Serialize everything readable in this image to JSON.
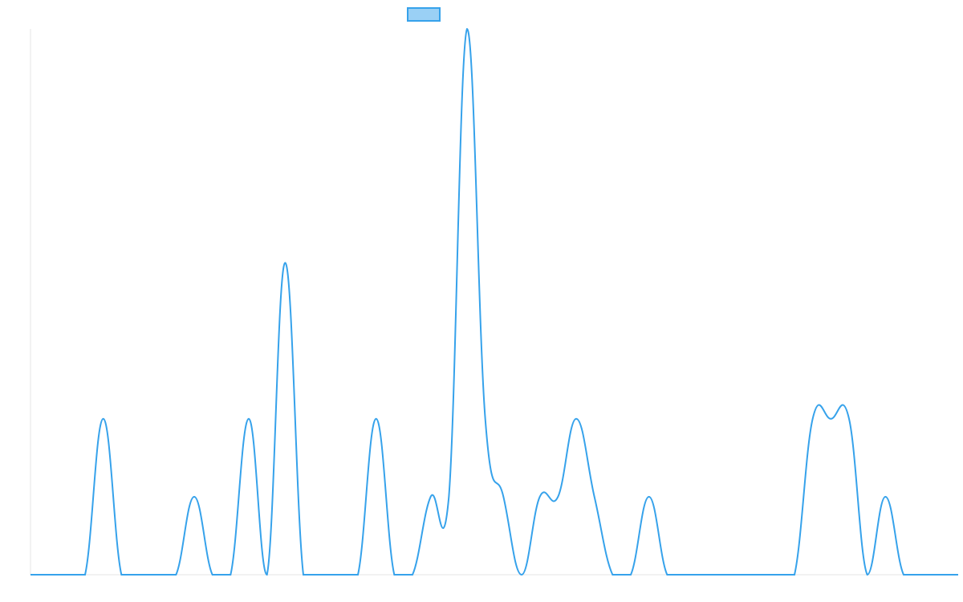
{
  "chart_data": {
    "type": "line",
    "categories": [
      null,
      null,
      null,
      null,
      null,
      null,
      null,
      null,
      null,
      null,
      null,
      null,
      null,
      null,
      null,
      null,
      null,
      null,
      null,
      null,
      null,
      null,
      null,
      null,
      null,
      null,
      null,
      null,
      null,
      null,
      null,
      null,
      null,
      null,
      null,
      null,
      null,
      null,
      null,
      null,
      null,
      null,
      null,
      null,
      null,
      null,
      null,
      null,
      null,
      null,
      null,
      null
    ],
    "series": [
      {
        "color": "#36a2eb",
        "values": [
          0,
          0,
          0,
          0,
          2,
          0,
          0,
          0,
          0,
          1,
          0,
          0,
          2,
          0,
          4,
          0,
          0,
          0,
          0,
          2,
          0,
          0,
          1,
          1,
          7,
          2,
          1,
          0,
          1,
          1,
          2,
          1,
          0,
          0,
          1,
          0,
          0,
          0,
          0,
          0,
          0,
          0,
          0,
          2,
          2,
          2,
          0,
          1,
          0,
          0,
          0,
          0
        ]
      }
    ],
    "ylim": [
      0,
      7
    ]
  }
}
